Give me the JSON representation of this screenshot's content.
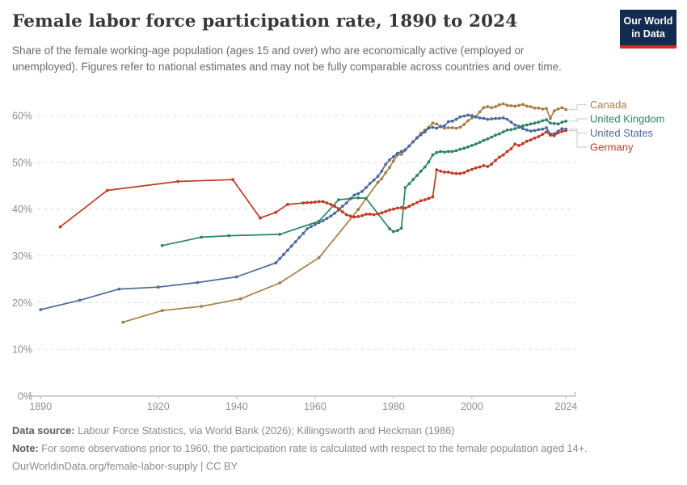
{
  "logo": {
    "line1": "Our World",
    "line2": "in Data",
    "bg_color": "#122b4e",
    "bar_color": "#d22a20"
  },
  "footer": {
    "sources_label": "Data source:",
    "sources_text": "Labour Force Statistics, via World Bank (2026); Killingsworth and Heckman (1986)",
    "note_label": "Note:",
    "note_text": "For some observations prior to 1960, the participation rate is calculated with respect to the female population aged 14+.",
    "url_text": "OurWorldinData.org/female-labor-supply | CC BY"
  },
  "chart_data": {
    "type": "line",
    "title": "Female labor force participation rate, 1890 to 2024",
    "subtitle": "Share of the female working-age population (ages 15 and over) who are economically active (employed or unemployed). Figures refer to national estimates and may not be fully comparable across countries and over time.",
    "xlabel": "",
    "ylabel": "",
    "xlim": [
      1888,
      2026
    ],
    "ylim": [
      0,
      65
    ],
    "grid": true,
    "markers": true,
    "legend_position": "right",
    "grid_color": "#dcdcdc",
    "axis_color": "#a3a3a3",
    "tick_label_color": "#8f8f8f",
    "connector_color": "#c9c9c9",
    "x_ticks": [
      1890,
      1920,
      1940,
      1960,
      1980,
      2000,
      2024
    ],
    "y_ticks": [
      {
        "value": 0,
        "label": "0%"
      },
      {
        "value": 10,
        "label": "10%"
      },
      {
        "value": 20,
        "label": "20%"
      },
      {
        "value": 30,
        "label": "30%"
      },
      {
        "value": 40,
        "label": "40%"
      },
      {
        "value": 50,
        "label": "50%"
      },
      {
        "value": 60,
        "label": "60%"
      }
    ],
    "series": [
      {
        "name": "Canada",
        "color": "#A87E48",
        "points": [
          [
            1911,
            15.8
          ],
          [
            1921,
            18.3
          ],
          [
            1931,
            19.2
          ],
          [
            1941,
            20.8
          ],
          [
            1951,
            24.2
          ],
          [
            1961,
            29.6
          ],
          [
            1971,
            39.9
          ],
          [
            1976,
            45.7
          ],
          [
            1977,
            46.5
          ],
          [
            1978,
            47.8
          ],
          [
            1979,
            48.9
          ],
          [
            1980,
            50.3
          ],
          [
            1981,
            51.6
          ],
          [
            1982,
            51.7
          ],
          [
            1983,
            52.6
          ],
          [
            1984,
            53.5
          ],
          [
            1985,
            54.4
          ],
          [
            1986,
            55.3
          ],
          [
            1987,
            56.2
          ],
          [
            1988,
            56.9
          ],
          [
            1989,
            57.5
          ],
          [
            1990,
            58.4
          ],
          [
            1991,
            58.2
          ],
          [
            1992,
            57.6
          ],
          [
            1993,
            57.3
          ],
          [
            1994,
            57.4
          ],
          [
            1995,
            57.4
          ],
          [
            1996,
            57.3
          ],
          [
            1997,
            57.5
          ],
          [
            1998,
            58.1
          ],
          [
            1999,
            58.9
          ],
          [
            2000,
            59.5
          ],
          [
            2001,
            59.8
          ],
          [
            2002,
            60.8
          ],
          [
            2003,
            61.7
          ],
          [
            2004,
            61.9
          ],
          [
            2005,
            61.7
          ],
          [
            2006,
            61.9
          ],
          [
            2007,
            62.3
          ],
          [
            2008,
            62.5
          ],
          [
            2009,
            62.2
          ],
          [
            2010,
            62.1
          ],
          [
            2011,
            62.0
          ],
          [
            2012,
            62.2
          ],
          [
            2013,
            62.4
          ],
          [
            2014,
            62.0
          ],
          [
            2015,
            61.9
          ],
          [
            2016,
            61.6
          ],
          [
            2017,
            61.6
          ],
          [
            2018,
            61.4
          ],
          [
            2019,
            61.5
          ],
          [
            2020,
            59.4
          ],
          [
            2021,
            61.0
          ],
          [
            2022,
            61.4
          ],
          [
            2023,
            61.7
          ],
          [
            2024,
            61.3
          ]
        ]
      },
      {
        "name": "United Kingdom",
        "color": "#2C8465",
        "points": [
          [
            1921,
            32.2
          ],
          [
            1931,
            34.0
          ],
          [
            1938,
            34.3
          ],
          [
            1951,
            34.6
          ],
          [
            1961,
            37.4
          ],
          [
            1966,
            42.0
          ],
          [
            1971,
            42.4
          ],
          [
            1973,
            42.3
          ],
          [
            1979,
            35.8
          ],
          [
            1980,
            35.2
          ],
          [
            1981,
            35.4
          ],
          [
            1982,
            35.9
          ],
          [
            1983,
            44.6
          ],
          [
            1984,
            45.4
          ],
          [
            1985,
            46.3
          ],
          [
            1986,
            47.2
          ],
          [
            1987,
            48.1
          ],
          [
            1988,
            49.0
          ],
          [
            1989,
            50.1
          ],
          [
            1990,
            51.6
          ],
          [
            1991,
            52.1
          ],
          [
            1992,
            52.3
          ],
          [
            1993,
            52.2
          ],
          [
            1994,
            52.3
          ],
          [
            1995,
            52.3
          ],
          [
            1996,
            52.5
          ],
          [
            1997,
            52.8
          ],
          [
            1998,
            53.0
          ],
          [
            1999,
            53.3
          ],
          [
            2000,
            53.6
          ],
          [
            2001,
            53.9
          ],
          [
            2002,
            54.3
          ],
          [
            2003,
            54.7
          ],
          [
            2004,
            55.0
          ],
          [
            2005,
            55.4
          ],
          [
            2006,
            55.8
          ],
          [
            2007,
            56.1
          ],
          [
            2008,
            56.5
          ],
          [
            2009,
            56.9
          ],
          [
            2010,
            57.0
          ],
          [
            2011,
            57.2
          ],
          [
            2012,
            57.5
          ],
          [
            2013,
            57.8
          ],
          [
            2014,
            58.0
          ],
          [
            2015,
            58.2
          ],
          [
            2016,
            58.4
          ],
          [
            2017,
            58.6
          ],
          [
            2018,
            58.9
          ],
          [
            2019,
            59.1
          ],
          [
            2020,
            58.4
          ],
          [
            2021,
            58.3
          ],
          [
            2022,
            58.2
          ],
          [
            2023,
            58.6
          ],
          [
            2024,
            58.8
          ]
        ]
      },
      {
        "name": "United States",
        "color": "#4C6A9C",
        "points": [
          [
            1890,
            18.5
          ],
          [
            1900,
            20.5
          ],
          [
            1910,
            22.9
          ],
          [
            1920,
            23.3
          ],
          [
            1930,
            24.3
          ],
          [
            1940,
            25.5
          ],
          [
            1950,
            28.5
          ],
          [
            1951,
            29.4
          ],
          [
            1952,
            30.3
          ],
          [
            1953,
            31.2
          ],
          [
            1954,
            32.1
          ],
          [
            1955,
            33.0
          ],
          [
            1956,
            33.9
          ],
          [
            1957,
            34.8
          ],
          [
            1958,
            35.8
          ],
          [
            1959,
            36.3
          ],
          [
            1960,
            36.7
          ],
          [
            1961,
            37.1
          ],
          [
            1962,
            37.5
          ],
          [
            1963,
            38.0
          ],
          [
            1964,
            38.5
          ],
          [
            1965,
            39.1
          ],
          [
            1966,
            39.8
          ],
          [
            1967,
            40.6
          ],
          [
            1968,
            41.3
          ],
          [
            1969,
            42.2
          ],
          [
            1970,
            43.0
          ],
          [
            1971,
            43.3
          ],
          [
            1972,
            43.8
          ],
          [
            1973,
            44.6
          ],
          [
            1974,
            45.5
          ],
          [
            1975,
            46.2
          ],
          [
            1976,
            47.0
          ],
          [
            1977,
            48.1
          ],
          [
            1978,
            49.6
          ],
          [
            1979,
            50.5
          ],
          [
            1980,
            51.2
          ],
          [
            1981,
            51.9
          ],
          [
            1982,
            52.3
          ],
          [
            1983,
            52.7
          ],
          [
            1984,
            53.5
          ],
          [
            1985,
            54.4
          ],
          [
            1986,
            55.2
          ],
          [
            1987,
            55.9
          ],
          [
            1988,
            56.5
          ],
          [
            1989,
            57.3
          ],
          [
            1990,
            57.5
          ],
          [
            1991,
            57.3
          ],
          [
            1992,
            57.7
          ],
          [
            1993,
            57.8
          ],
          [
            1994,
            58.7
          ],
          [
            1995,
            58.8
          ],
          [
            1996,
            59.2
          ],
          [
            1997,
            59.7
          ],
          [
            1998,
            59.9
          ],
          [
            1999,
            60.1
          ],
          [
            2000,
            60.0
          ],
          [
            2001,
            59.7
          ],
          [
            2002,
            59.5
          ],
          [
            2003,
            59.4
          ],
          [
            2004,
            59.2
          ],
          [
            2005,
            59.3
          ],
          [
            2006,
            59.4
          ],
          [
            2007,
            59.4
          ],
          [
            2008,
            59.5
          ],
          [
            2009,
            59.2
          ],
          [
            2010,
            58.6
          ],
          [
            2011,
            58.0
          ],
          [
            2012,
            57.7
          ],
          [
            2013,
            57.2
          ],
          [
            2014,
            56.9
          ],
          [
            2015,
            56.7
          ],
          [
            2016,
            56.8
          ],
          [
            2017,
            57.0
          ],
          [
            2018,
            57.1
          ],
          [
            2019,
            57.4
          ],
          [
            2020,
            56.1
          ],
          [
            2021,
            56.1
          ],
          [
            2022,
            56.7
          ],
          [
            2023,
            57.2
          ],
          [
            2024,
            57.1
          ]
        ]
      },
      {
        "name": "Germany",
        "color": "#BE3B25",
        "points": [
          [
            1895,
            36.2
          ],
          [
            1907,
            44.0
          ],
          [
            1925,
            45.9
          ],
          [
            1939,
            46.3
          ],
          [
            1946,
            38.1
          ],
          [
            1950,
            39.3
          ],
          [
            1953,
            41.0
          ],
          [
            1957,
            41.3
          ],
          [
            1958,
            41.4
          ],
          [
            1959,
            41.4
          ],
          [
            1960,
            41.5
          ],
          [
            1961,
            41.6
          ],
          [
            1962,
            41.6
          ],
          [
            1963,
            41.3
          ],
          [
            1964,
            41.0
          ],
          [
            1965,
            40.6
          ],
          [
            1966,
            40.1
          ],
          [
            1967,
            39.4
          ],
          [
            1968,
            38.8
          ],
          [
            1969,
            38.5
          ],
          [
            1970,
            38.3
          ],
          [
            1971,
            38.4
          ],
          [
            1972,
            38.6
          ],
          [
            1973,
            38.9
          ],
          [
            1974,
            38.9
          ],
          [
            1975,
            38.8
          ],
          [
            1976,
            39.0
          ],
          [
            1977,
            39.2
          ],
          [
            1978,
            39.5
          ],
          [
            1979,
            39.8
          ],
          [
            1980,
            40.0
          ],
          [
            1981,
            40.2
          ],
          [
            1982,
            40.3
          ],
          [
            1983,
            40.2
          ],
          [
            1984,
            40.6
          ],
          [
            1985,
            41.0
          ],
          [
            1986,
            41.4
          ],
          [
            1987,
            41.8
          ],
          [
            1988,
            42.0
          ],
          [
            1989,
            42.3
          ],
          [
            1990,
            42.6
          ],
          [
            1991,
            48.4
          ],
          [
            1992,
            48.1
          ],
          [
            1993,
            47.9
          ],
          [
            1994,
            47.9
          ],
          [
            1995,
            47.7
          ],
          [
            1996,
            47.6
          ],
          [
            1997,
            47.6
          ],
          [
            1998,
            47.8
          ],
          [
            1999,
            48.2
          ],
          [
            2000,
            48.5
          ],
          [
            2001,
            48.8
          ],
          [
            2002,
            49.0
          ],
          [
            2003,
            49.3
          ],
          [
            2004,
            49.1
          ],
          [
            2005,
            49.6
          ],
          [
            2006,
            50.4
          ],
          [
            2007,
            51.1
          ],
          [
            2008,
            51.6
          ],
          [
            2009,
            52.3
          ],
          [
            2010,
            52.9
          ],
          [
            2011,
            53.9
          ],
          [
            2012,
            53.6
          ],
          [
            2013,
            54.0
          ],
          [
            2014,
            54.5
          ],
          [
            2015,
            54.8
          ],
          [
            2016,
            55.2
          ],
          [
            2017,
            55.5
          ],
          [
            2018,
            56.0
          ],
          [
            2019,
            56.5
          ],
          [
            2020,
            55.8
          ],
          [
            2021,
            55.7
          ],
          [
            2022,
            56.3
          ],
          [
            2023,
            56.6
          ],
          [
            2024,
            56.8
          ]
        ]
      }
    ]
  }
}
